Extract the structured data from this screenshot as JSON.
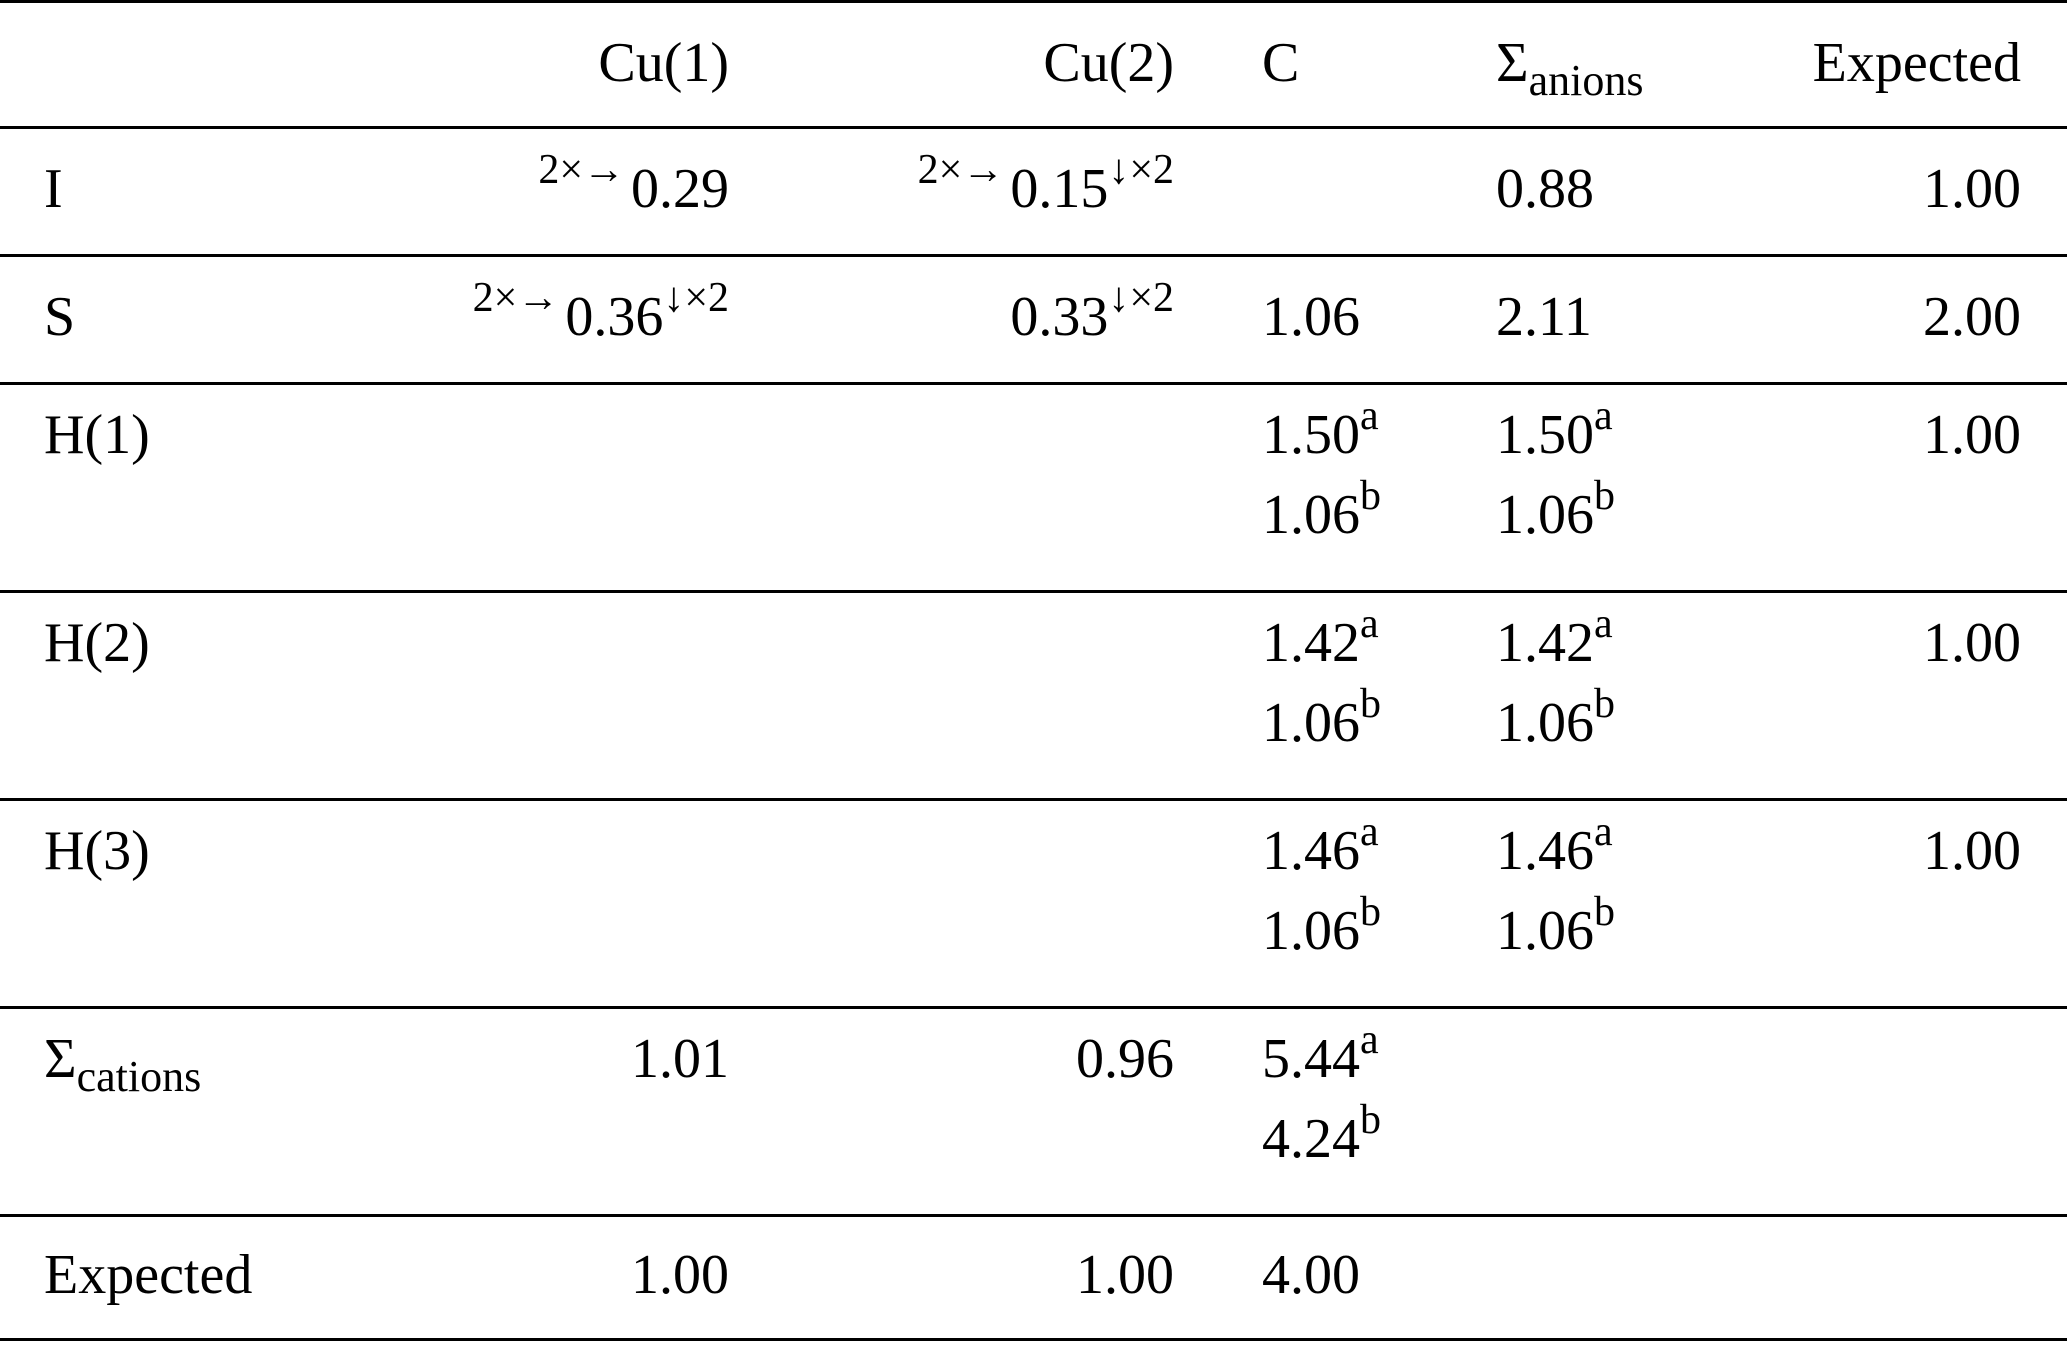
{
  "columns": {
    "blank": "",
    "cu1": "Cu(1)",
    "cu2": "Cu(2)",
    "c": "C",
    "sum_anions_symbol": "Σ",
    "sum_anions_sub": "anions",
    "expected": "Expected"
  },
  "rows": {
    "I": {
      "label": "I",
      "cu1_pre": "2×→",
      "cu1": "0.29",
      "cu1_post": "",
      "cu2_pre": "2×→",
      "cu2": "0.15",
      "cu2_post": "↓×2",
      "sum": "0.88",
      "expected": "1.00"
    },
    "S": {
      "label": "S",
      "cu1_pre": "2×→",
      "cu1": "0.36",
      "cu1_post": "↓×2",
      "cu2": "0.33",
      "cu2_post": "↓×2",
      "c": "1.06",
      "sum": "2.11",
      "expected": "2.00"
    },
    "H1": {
      "label": "H(1)",
      "c_a": "1.50",
      "c_b": "1.06",
      "sum_a": "1.50",
      "sum_b": "1.06",
      "expected": "1.00"
    },
    "H2": {
      "label": "H(2)",
      "c_a": "1.42",
      "c_b": "1.06",
      "sum_a": "1.42",
      "sum_b": "1.06",
      "expected": "1.00"
    },
    "H3": {
      "label": "H(3)",
      "c_a": "1.46",
      "c_b": "1.06",
      "sum_a": "1.46",
      "sum_b": "1.06",
      "expected": "1.00"
    },
    "sum_cations": {
      "label_symbol": "Σ",
      "label_sub": "cations",
      "cu1": "1.01",
      "cu2": "0.96",
      "c_a": "5.44",
      "c_b": "4.24"
    },
    "expected": {
      "label": "Expected",
      "cu1": "1.00",
      "cu2": "1.00",
      "c": "4.00"
    }
  },
  "footnote_marks": {
    "a": "a",
    "b": "b"
  }
}
